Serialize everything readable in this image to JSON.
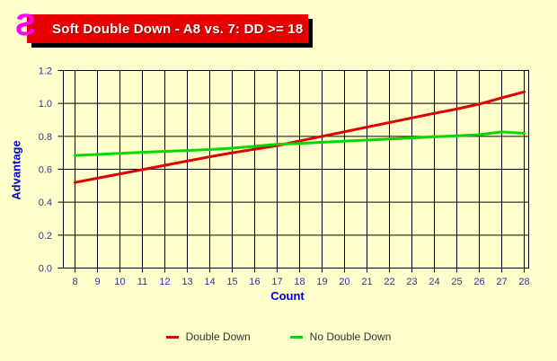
{
  "banner": {
    "title": "Soft Double Down - A8 vs. 7: DD >= 18",
    "icon_glyph": "Ƨ"
  },
  "icons": {
    "title_badge": "magenta-reversed-s"
  },
  "colors": {
    "background": "#FFFFCC",
    "banner_background": "#E80000",
    "banner_text": "#FFFFFF",
    "banner_shadow": "#000000",
    "icon_magenta": "#FF00FF",
    "grid": "#000000",
    "tick_label": "#333399",
    "axis_title": "#0000CC",
    "legend_text": "#333333"
  },
  "chart_data": {
    "type": "line",
    "title": "Soft Double Down - A8 vs. 7: DD >= 18",
    "xlabel": "Count",
    "ylabel": "Advantage",
    "x": [
      8,
      9,
      10,
      11,
      12,
      13,
      14,
      15,
      16,
      17,
      18,
      19,
      20,
      21,
      22,
      23,
      24,
      25,
      26,
      27,
      28
    ],
    "xlim": [
      8,
      28
    ],
    "ylim": [
      0,
      1.2
    ],
    "ytick_step": 0.2,
    "yticks": [
      "0.0",
      "0.2",
      "0.4",
      "0.6",
      "0.8",
      "1.0",
      "1.2"
    ],
    "grid": true,
    "legend_position": "bottom",
    "series": [
      {
        "name": "Double Down",
        "color": "#DD0000",
        "values": [
          0.52,
          0.546,
          0.572,
          0.598,
          0.624,
          0.65,
          0.676,
          0.7,
          0.722,
          0.744,
          0.772,
          0.8,
          0.828,
          0.856,
          0.884,
          0.912,
          0.94,
          0.966,
          0.996,
          1.034,
          1.07
        ]
      },
      {
        "name": "No Double Down",
        "color": "#00D900",
        "values": [
          0.684,
          0.69,
          0.697,
          0.703,
          0.709,
          0.714,
          0.72,
          0.728,
          0.74,
          0.752,
          0.757,
          0.764,
          0.771,
          0.777,
          0.784,
          0.79,
          0.798,
          0.803,
          0.81,
          0.827,
          0.818
        ]
      }
    ]
  }
}
